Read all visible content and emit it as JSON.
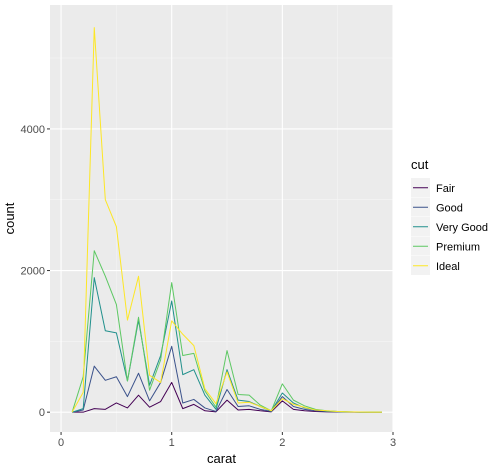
{
  "chart_data": {
    "type": "line",
    "title": "",
    "xlabel": "carat",
    "ylabel": "count",
    "xlim": [
      -0.1,
      3.0
    ],
    "ylim": [
      -280,
      5750
    ],
    "x_ticks": [
      0,
      1,
      2,
      3
    ],
    "x_tick_labels": [
      "0",
      "1",
      "2",
      "3"
    ],
    "y_ticks": [
      0,
      2000,
      4000
    ],
    "y_tick_labels": [
      "0",
      "2000",
      "4000"
    ],
    "grid": true,
    "legend_placement": "right",
    "legend_title": "cut",
    "x": [
      0.1,
      0.2,
      0.3,
      0.4,
      0.5,
      0.6,
      0.7,
      0.8,
      0.9,
      1.0,
      1.1,
      1.2,
      1.3,
      1.4,
      1.5,
      1.6,
      1.7,
      1.8,
      1.9,
      2.0,
      2.1,
      2.2,
      2.3,
      2.4,
      2.5,
      2.6,
      2.7,
      2.8,
      2.9
    ],
    "series": [
      {
        "name": "Fair",
        "color": "#440154",
        "values": [
          0,
          0,
          50,
          40,
          130,
          60,
          240,
          70,
          150,
          420,
          50,
          110,
          20,
          5,
          170,
          30,
          40,
          20,
          5,
          160,
          40,
          20,
          10,
          5,
          3,
          1,
          0,
          0,
          0
        ]
      },
      {
        "name": "Good",
        "color": "#3b528b",
        "values": [
          0,
          30,
          650,
          450,
          500,
          220,
          550,
          160,
          420,
          930,
          130,
          180,
          60,
          10,
          320,
          80,
          90,
          40,
          10,
          220,
          80,
          40,
          20,
          10,
          5,
          2,
          0,
          0,
          0
        ]
      },
      {
        "name": "Very Good",
        "color": "#21908c",
        "values": [
          0,
          50,
          1900,
          1150,
          1120,
          440,
          1300,
          380,
          800,
          1570,
          530,
          600,
          240,
          40,
          600,
          170,
          150,
          80,
          15,
          270,
          130,
          60,
          35,
          15,
          10,
          4,
          0,
          0,
          0
        ]
      },
      {
        "name": "Premium",
        "color": "#5dc863",
        "values": [
          0,
          500,
          2280,
          1920,
          1520,
          440,
          1340,
          310,
          740,
          1830,
          800,
          830,
          300,
          70,
          870,
          250,
          240,
          100,
          20,
          400,
          170,
          90,
          40,
          20,
          10,
          4,
          1,
          0,
          0
        ]
      },
      {
        "name": "Ideal",
        "color": "#fde725",
        "values": [
          0,
          280,
          5430,
          3000,
          2620,
          1300,
          1920,
          520,
          420,
          1290,
          1100,
          940,
          330,
          120,
          570,
          130,
          140,
          80,
          20,
          190,
          110,
          70,
          30,
          20,
          10,
          5,
          2,
          1,
          0
        ]
      }
    ]
  }
}
